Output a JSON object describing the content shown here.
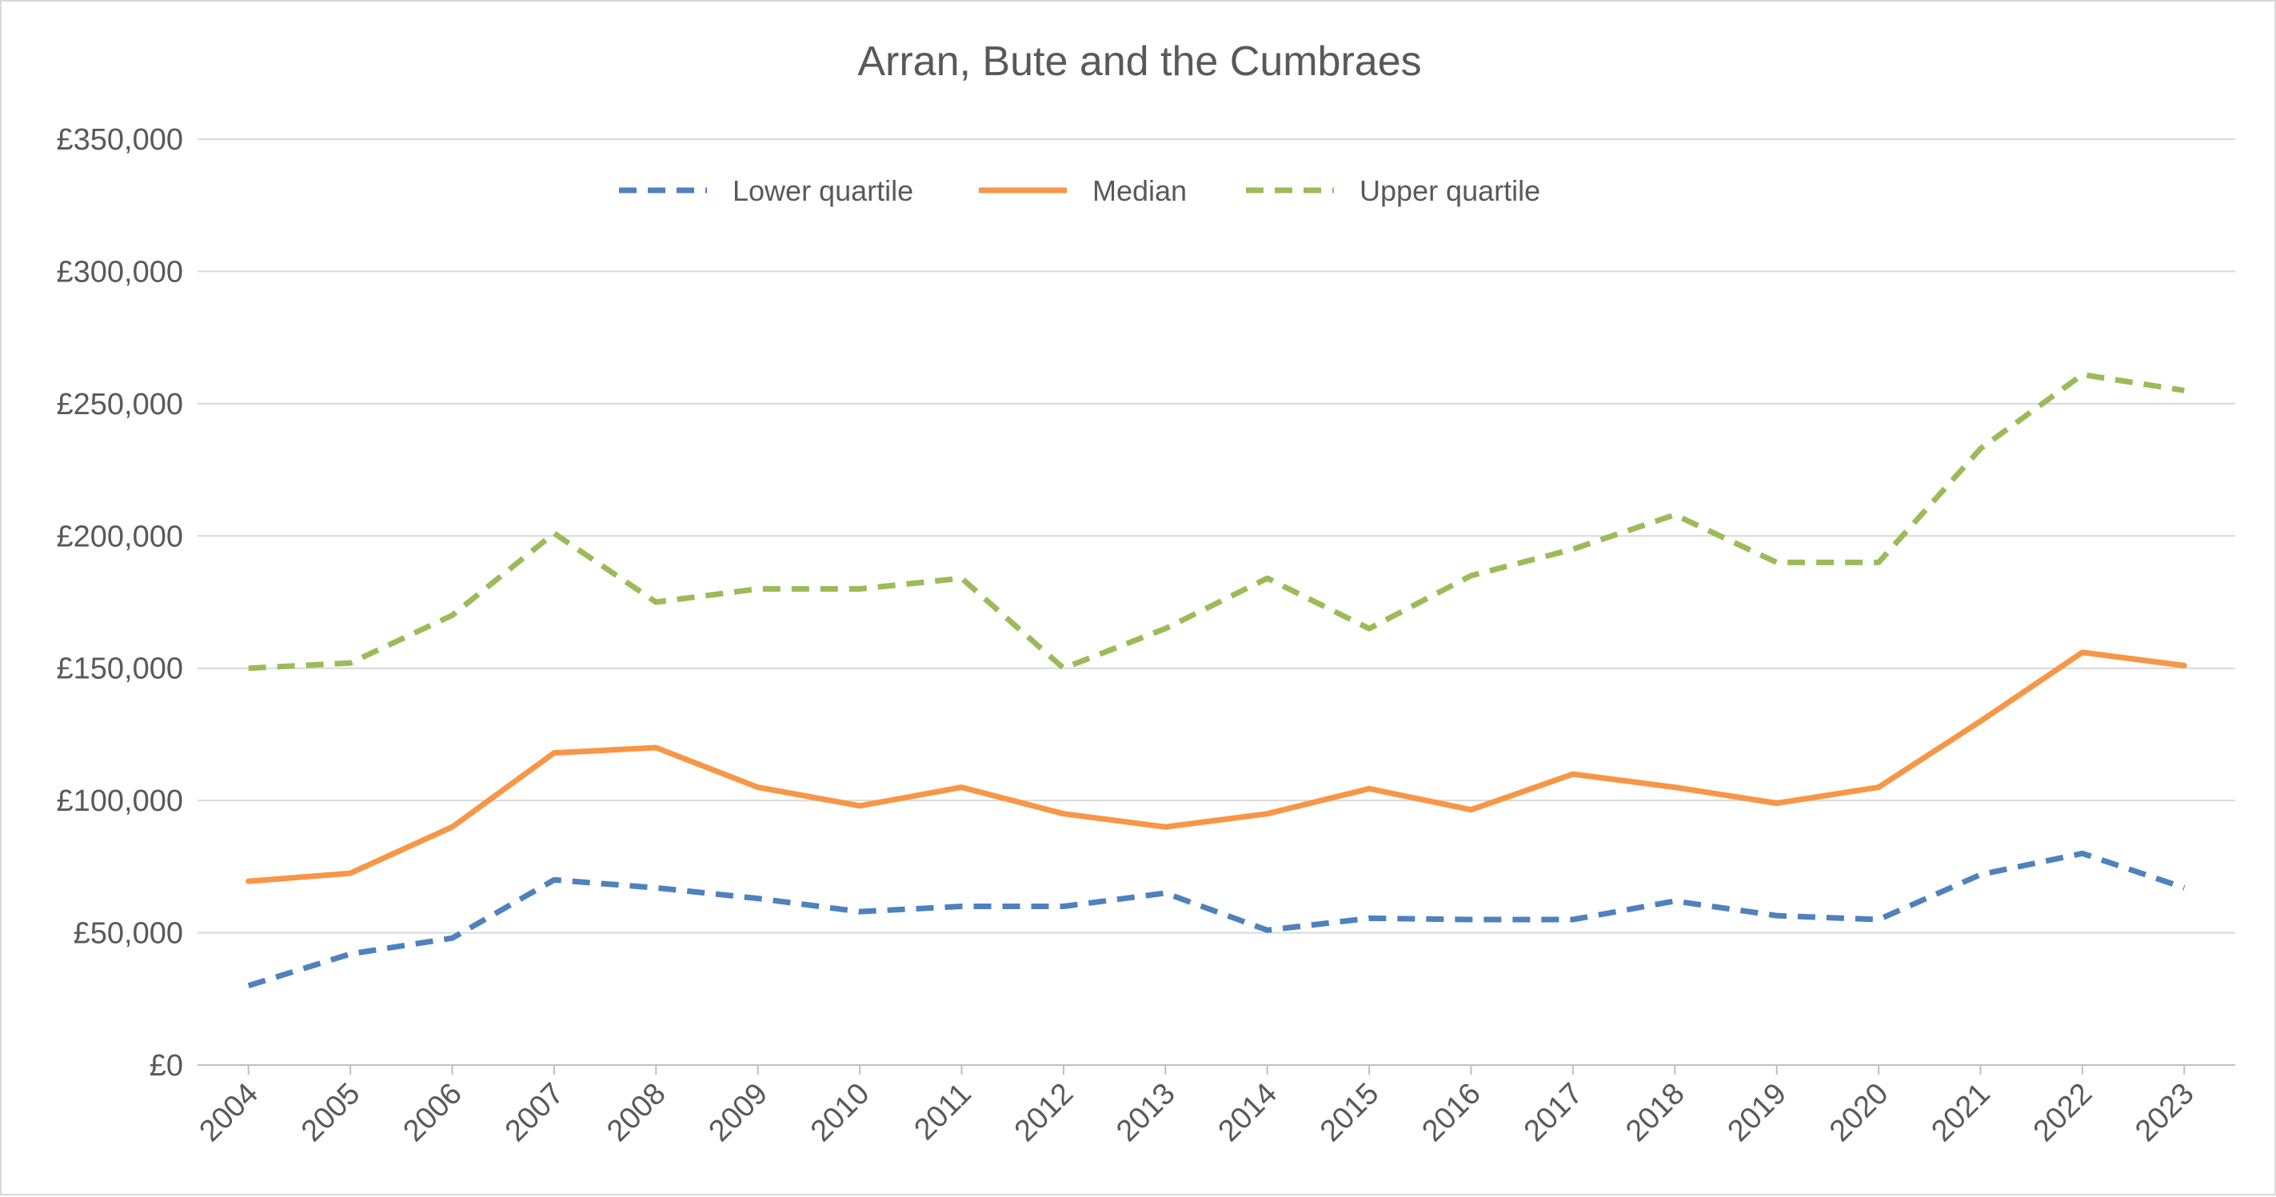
{
  "chart_data": {
    "type": "line",
    "title": "Arran, Bute and the Cumbraes",
    "xlabel": "",
    "ylabel": "",
    "x": [
      "2004",
      "2005",
      "2006",
      "2007",
      "2008",
      "2009",
      "2010",
      "2011",
      "2012",
      "2013",
      "2014",
      "2015",
      "2016",
      "2017",
      "2018",
      "2019",
      "2020",
      "2021",
      "2022",
      "2023"
    ],
    "ylim": [
      0,
      350000
    ],
    "y_ticks": [
      0,
      50000,
      100000,
      150000,
      200000,
      250000,
      300000,
      350000
    ],
    "y_tick_labels": [
      "£0",
      "£50,000",
      "£100,000",
      "£150,000",
      "£200,000",
      "£250,000",
      "£300,000",
      "£350,000"
    ],
    "grid": true,
    "legend_position": "top",
    "series": [
      {
        "name": "Lower quartile",
        "color": "#4f81bd",
        "style": "dashed",
        "values": [
          30000,
          42000,
          48000,
          70000,
          67000,
          63000,
          58000,
          60000,
          60000,
          65000,
          51000,
          55500,
          55000,
          55000,
          62000,
          56500,
          55000,
          72000,
          80000,
          67000
        ]
      },
      {
        "name": "Median",
        "color": "#f79646",
        "style": "solid",
        "values": [
          69500,
          72500,
          90000,
          118000,
          120000,
          105000,
          98000,
          105000,
          95000,
          90000,
          95000,
          104500,
          96500,
          110000,
          105000,
          99000,
          105000,
          130000,
          156000,
          151000
        ]
      },
      {
        "name": "Upper quartile",
        "color": "#9bbb59",
        "style": "dashed",
        "values": [
          150000,
          152000,
          170000,
          201000,
          175000,
          180000,
          180000,
          184000,
          150000,
          165000,
          184000,
          165000,
          185000,
          195000,
          208000,
          190000,
          190000,
          233000,
          261000,
          255000
        ]
      }
    ],
    "colors": {
      "gridline": "#d9d9d9",
      "axis": "#bfbfbf",
      "text": "#595959"
    }
  }
}
